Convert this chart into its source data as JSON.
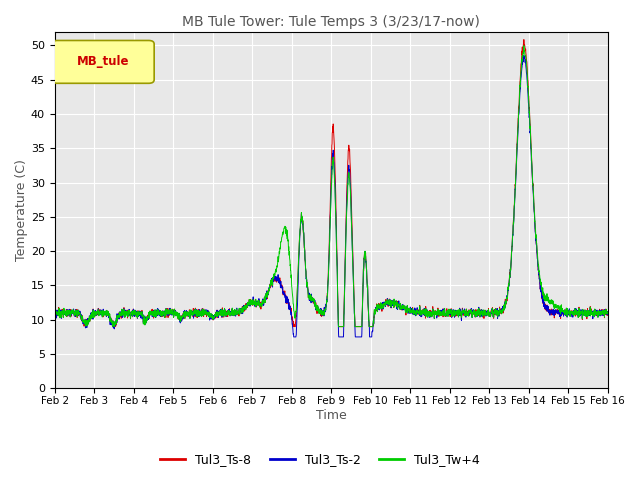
{
  "title": "MB Tule Tower: Tule Temps 3 (3/23/17-now)",
  "xlabel": "Time",
  "ylabel": "Temperature (C)",
  "ylim": [
    0,
    52
  ],
  "yticks": [
    0,
    5,
    10,
    15,
    20,
    25,
    30,
    35,
    40,
    45,
    50
  ],
  "xlim": [
    0,
    14
  ],
  "xtick_labels": [
    "Feb 2",
    "Feb 3",
    "Feb 4",
    "Feb 5",
    "Feb 6",
    "Feb 7",
    "Feb 8",
    "Feb 9",
    "Feb 10",
    "Feb 11",
    "Feb 12",
    "Feb 13",
    "Feb 14",
    "Feb 15",
    "Feb 16"
  ],
  "legend_label": "MB_tule",
  "series": {
    "Tul3_Ts-8": {
      "color": "#dd0000"
    },
    "Tul3_Ts-2": {
      "color": "#0000cc"
    },
    "Tul3_Tw+4": {
      "color": "#00cc00"
    }
  },
  "bg_color": "#e8e8e8",
  "figsize": [
    6.4,
    4.8
  ],
  "dpi": 100
}
